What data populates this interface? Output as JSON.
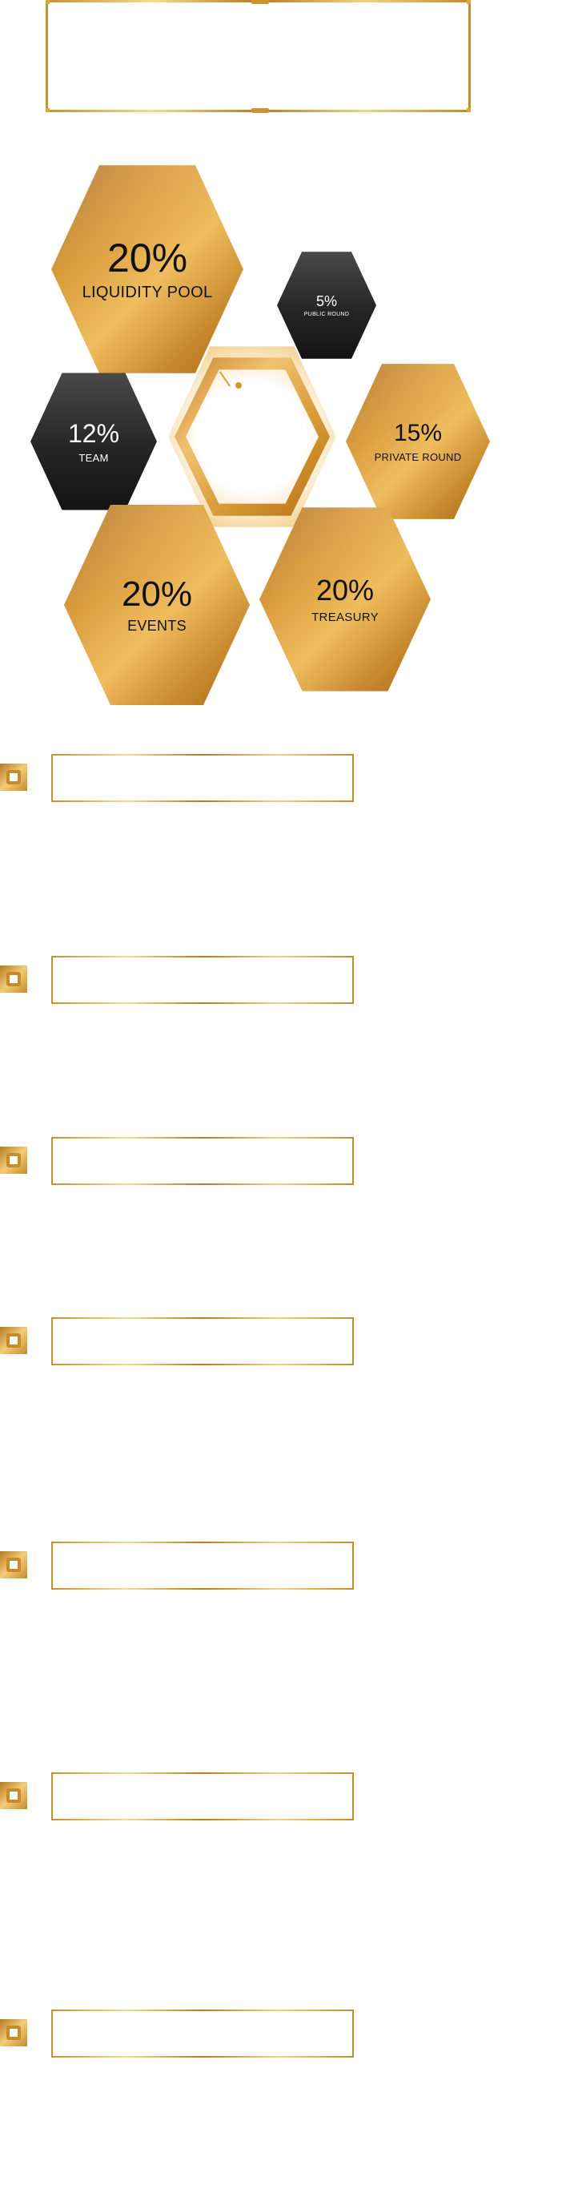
{
  "tokenomics": {
    "segments": [
      {
        "id": "liquidity-pool",
        "percent": "20%",
        "label": "LIQUIDITY POOL",
        "style": "gold"
      },
      {
        "id": "public-round",
        "percent": "5%",
        "label": "PUBLIC ROUND",
        "style": "dark"
      },
      {
        "id": "team",
        "percent": "12%",
        "label": "TEAM",
        "style": "dark"
      },
      {
        "id": "private-round",
        "percent": "15%",
        "label": "PRIVATE ROUND",
        "style": "gold"
      },
      {
        "id": "events",
        "percent": "20%",
        "label": "EVENTS",
        "style": "gold"
      },
      {
        "id": "treasury",
        "percent": "20%",
        "label": "TREASURY",
        "style": "gold"
      }
    ]
  },
  "colors": {
    "gold": "#d99b3c",
    "gold_light": "#f6dc8a",
    "dark": "#252525",
    "background": "#ffffff"
  },
  "sections": [
    {
      "id": "section-1",
      "icon": "gold-square-icon"
    },
    {
      "id": "section-2",
      "icon": "gold-square-icon"
    },
    {
      "id": "section-3",
      "icon": "gold-square-icon"
    },
    {
      "id": "section-4",
      "icon": "gold-square-icon"
    },
    {
      "id": "section-5",
      "icon": "gold-square-icon"
    },
    {
      "id": "section-6",
      "icon": "gold-square-icon"
    },
    {
      "id": "section-7",
      "icon": "gold-square-icon"
    }
  ]
}
